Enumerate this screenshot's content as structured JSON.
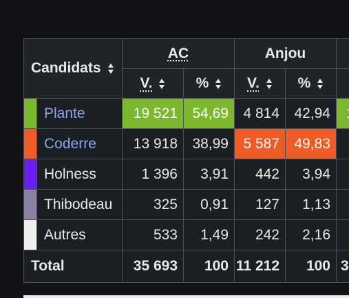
{
  "header": {
    "candidates_label": "Candidats",
    "regions": [
      "AC",
      "Anjou"
    ],
    "vote_label": "V.",
    "percent_label": "%"
  },
  "colors": {
    "plante": "#7bb82e",
    "coderre": "#f05a24",
    "holness": "#6a1ff0",
    "thibodeau": "#8c81a3",
    "autres": "#eeeeee"
  },
  "rows": [
    {
      "name": "Plante",
      "ac_votes": "19 521",
      "ac_pct": "54,69",
      "anjou_votes": "4 814",
      "anjou_pct": "42,94"
    },
    {
      "name": "Coderre",
      "ac_votes": "13 918",
      "ac_pct": "38,99",
      "anjou_votes": "5 587",
      "anjou_pct": "49,83"
    },
    {
      "name": "Holness",
      "ac_votes": "1 396",
      "ac_pct": "3,91",
      "anjou_votes": "442",
      "anjou_pct": "3,94"
    },
    {
      "name": "Thibodeau",
      "ac_votes": "325",
      "ac_pct": "0,91",
      "anjou_votes": "127",
      "anjou_pct": "1,13"
    },
    {
      "name": "Autres",
      "ac_votes": "533",
      "ac_pct": "1,49",
      "anjou_votes": "242",
      "anjou_pct": "2,16"
    }
  ],
  "total": {
    "label": "Total",
    "ac_votes": "35 693",
    "ac_pct": "100",
    "anjou_votes": "11 212",
    "anjou_pct": "100",
    "next_partial": "3"
  },
  "partial_next": "1"
}
